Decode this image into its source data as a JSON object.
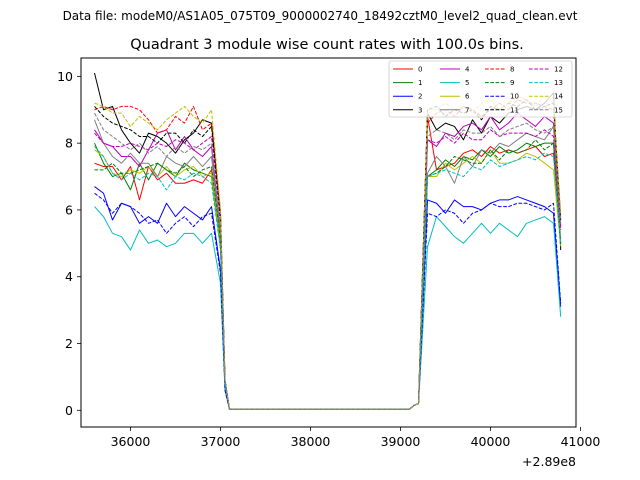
{
  "figure": {
    "suptitle": "Data file: modeM0/AS1A05_075T09_9000002740_18492cztM0_level2_quad_clean.evt"
  },
  "chart_data": {
    "type": "line",
    "title": "Quadrant 3 module wise count rates with 100.0s bins.",
    "xlabel": "",
    "ylabel": "",
    "x_offset_label": "+2.89e8",
    "xlim": [
      35450,
      40950
    ],
    "ylim": [
      -0.5,
      10.55
    ],
    "xticks": [
      36000,
      37000,
      38000,
      39000,
      40000,
      41000
    ],
    "xtick_labels": [
      "36000",
      "37000",
      "38000",
      "39000",
      "40000",
      "41000"
    ],
    "yticks": [
      0,
      2,
      4,
      6,
      8,
      10
    ],
    "ytick_labels": [
      "0",
      "2",
      "4",
      "6",
      "8",
      "10"
    ],
    "grid": false,
    "legend": {
      "placement": "top-right",
      "columns": 4
    },
    "x": [
      35600,
      35700,
      35800,
      35900,
      36000,
      36100,
      36200,
      36300,
      36400,
      36500,
      36600,
      36700,
      36800,
      36900,
      37000,
      37050,
      37100,
      37500,
      38000,
      38500,
      39000,
      39100,
      39150,
      39200,
      39300,
      39400,
      39500,
      39600,
      39700,
      39800,
      39900,
      40000,
      40100,
      40200,
      40300,
      40400,
      40500,
      40600,
      40700,
      40780
    ],
    "series": [
      {
        "name": "0",
        "color": "#ff0000",
        "dash": "solid",
        "values": [
          7.4,
          7.3,
          7.3,
          6.9,
          7.3,
          6.3,
          7.3,
          6.9,
          7.1,
          6.8,
          6.8,
          6.9,
          6.8,
          7.2,
          5.0,
          0.8,
          0.03,
          0.03,
          0.03,
          0.03,
          0.03,
          0.03,
          0.15,
          0.2,
          8.8,
          7.2,
          7.3,
          7.4,
          7.7,
          7.8,
          7.6,
          7.9,
          7.7,
          7.8,
          7.7,
          7.8,
          7.9,
          7.6,
          7.7,
          5.0
        ]
      },
      {
        "name": "1",
        "color": "#008000",
        "dash": "solid",
        "values": [
          8.0,
          7.4,
          7.0,
          7.1,
          6.6,
          7.4,
          6.9,
          7.4,
          7.2,
          7.0,
          7.4,
          7.2,
          7.1,
          7.0,
          4.9,
          0.8,
          0.03,
          0.03,
          0.03,
          0.03,
          0.03,
          0.03,
          0.15,
          0.2,
          7.0,
          7.2,
          7.5,
          7.3,
          7.6,
          7.5,
          7.8,
          7.6,
          7.9,
          7.7,
          7.8,
          8.0,
          7.9,
          8.0,
          8.0,
          5.0
        ]
      },
      {
        "name": "2",
        "color": "#0000ff",
        "dash": "solid",
        "values": [
          6.7,
          6.5,
          5.7,
          6.2,
          6.1,
          5.6,
          5.8,
          5.6,
          6.2,
          5.8,
          6.1,
          5.9,
          5.7,
          6.1,
          4.2,
          0.7,
          0.03,
          0.03,
          0.03,
          0.03,
          0.03,
          0.03,
          0.15,
          0.2,
          6.3,
          6.2,
          5.9,
          6.3,
          6.1,
          6.1,
          6.0,
          6.2,
          6.3,
          6.3,
          6.4,
          6.3,
          6.2,
          6.1,
          5.9,
          3.1
        ]
      },
      {
        "name": "3",
        "color": "#000000",
        "dash": "solid",
        "values": [
          10.1,
          9.0,
          9.1,
          8.4,
          8.0,
          7.7,
          8.3,
          8.2,
          8.0,
          7.7,
          8.1,
          8.3,
          8.7,
          8.6,
          5.9,
          0.9,
          0.03,
          0.03,
          0.03,
          0.03,
          0.03,
          0.03,
          0.15,
          0.2,
          8.9,
          8.4,
          8.6,
          8.5,
          8.1,
          8.7,
          8.3,
          8.8,
          8.6,
          8.9,
          9.0,
          9.1,
          9.0,
          9.2,
          9.5,
          4.8
        ]
      },
      {
        "name": "4",
        "color": "#bf00bf",
        "dash": "solid",
        "values": [
          8.4,
          8.0,
          7.9,
          7.6,
          7.6,
          7.3,
          7.8,
          8.3,
          8.4,
          7.8,
          8.2,
          7.8,
          7.6,
          7.9,
          5.3,
          0.9,
          0.03,
          0.03,
          0.03,
          0.03,
          0.03,
          0.03,
          0.15,
          0.2,
          8.1,
          7.9,
          8.3,
          8.2,
          8.5,
          8.6,
          8.4,
          8.8,
          8.4,
          8.6,
          8.9,
          8.7,
          8.5,
          8.8,
          8.6,
          5.5
        ]
      },
      {
        "name": "5",
        "color": "#00bfbf",
        "dash": "solid",
        "values": [
          6.1,
          5.8,
          5.3,
          5.2,
          4.8,
          5.4,
          5.0,
          5.1,
          4.9,
          5.0,
          5.3,
          5.3,
          5.0,
          5.3,
          3.8,
          0.6,
          0.03,
          0.03,
          0.03,
          0.03,
          0.03,
          0.03,
          0.15,
          0.2,
          4.9,
          5.8,
          5.5,
          5.2,
          5.0,
          5.3,
          5.6,
          5.3,
          5.6,
          5.4,
          5.2,
          5.6,
          5.7,
          5.8,
          5.6,
          2.8
        ]
      },
      {
        "name": "6",
        "color": "#bfbf00",
        "dash": "solid",
        "values": [
          7.8,
          7.6,
          7.1,
          7.0,
          7.2,
          7.1,
          7.3,
          7.0,
          7.3,
          7.0,
          7.2,
          7.3,
          7.0,
          7.1,
          5.0,
          0.8,
          0.03,
          0.03,
          0.03,
          0.03,
          0.03,
          0.03,
          0.15,
          0.2,
          7.0,
          7.0,
          7.4,
          7.2,
          7.4,
          7.6,
          7.4,
          7.8,
          7.4,
          7.4,
          7.5,
          7.7,
          7.6,
          7.4,
          7.2,
          4.9
        ]
      },
      {
        "name": "7",
        "color": "#808080",
        "dash": "solid",
        "values": [
          8.7,
          8.0,
          7.6,
          7.4,
          7.7,
          7.4,
          7.4,
          7.0,
          7.6,
          7.4,
          7.3,
          7.6,
          7.3,
          7.6,
          5.2,
          0.8,
          0.03,
          0.03,
          0.03,
          0.03,
          0.03,
          0.03,
          0.15,
          0.2,
          7.1,
          7.6,
          7.3,
          6.8,
          7.6,
          7.3,
          7.8,
          7.7,
          8.0,
          7.9,
          8.1,
          8.3,
          8.2,
          8.1,
          8.5,
          5.1
        ]
      },
      {
        "name": "8",
        "color": "#ff0000",
        "dash": "dashed",
        "values": [
          9.0,
          9.1,
          9.0,
          9.1,
          9.1,
          9.0,
          8.7,
          8.3,
          8.4,
          8.8,
          8.6,
          9.1,
          8.4,
          8.6,
          5.9,
          0.9,
          0.03,
          0.03,
          0.03,
          0.03,
          0.03,
          0.03,
          0.15,
          0.2,
          8.6,
          8.9,
          9.0,
          8.8,
          9.1,
          9.0,
          8.8,
          9.0,
          9.2,
          9.0,
          9.3,
          9.2,
          9.2,
          9.1,
          9.0,
          5.8
        ]
      },
      {
        "name": "9",
        "color": "#008000",
        "dash": "dashed",
        "values": [
          7.2,
          7.2,
          7.4,
          7.1,
          7.1,
          7.2,
          7.3,
          7.4,
          7.2,
          7.1,
          7.3,
          7.0,
          7.2,
          7.3,
          5.1,
          0.8,
          0.03,
          0.03,
          0.03,
          0.03,
          0.03,
          0.03,
          0.15,
          0.2,
          7.0,
          7.1,
          7.3,
          7.6,
          7.5,
          7.4,
          7.4,
          7.8,
          7.5,
          7.8,
          7.7,
          7.8,
          8.1,
          7.8,
          8.0,
          4.9
        ]
      },
      {
        "name": "10",
        "color": "#0000ff",
        "dash": "dashed",
        "values": [
          6.5,
          6.3,
          5.9,
          6.2,
          6.1,
          5.9,
          5.6,
          5.7,
          5.3,
          5.6,
          5.8,
          5.5,
          5.8,
          5.9,
          4.1,
          0.6,
          0.03,
          0.03,
          0.03,
          0.03,
          0.03,
          0.03,
          0.15,
          0.2,
          5.9,
          5.8,
          6.0,
          5.9,
          5.6,
          5.9,
          6.0,
          6.2,
          6.1,
          6.1,
          6.2,
          6.2,
          6.1,
          6.0,
          6.2,
          3.2
        ]
      },
      {
        "name": "11",
        "color": "#000000",
        "dash": "dashed",
        "values": [
          9.1,
          8.8,
          8.6,
          8.5,
          8.4,
          8.2,
          8.2,
          8.0,
          8.3,
          8.3,
          8.0,
          8.4,
          8.2,
          8.5,
          5.7,
          0.9,
          0.03,
          0.03,
          0.03,
          0.03,
          0.03,
          0.03,
          0.15,
          0.2,
          9.0,
          9.1,
          8.8,
          9.0,
          8.9,
          9.0,
          8.7,
          9.1,
          9.0,
          9.2,
          9.1,
          9.3,
          9.0,
          9.1,
          9.2,
          5.7
        ]
      },
      {
        "name": "12",
        "color": "#bf00bf",
        "dash": "dashed",
        "values": [
          8.3,
          8.0,
          7.9,
          7.9,
          8.0,
          7.9,
          7.8,
          8.0,
          7.9,
          8.1,
          8.0,
          7.8,
          8.0,
          8.2,
          5.5,
          0.9,
          0.03,
          0.03,
          0.03,
          0.03,
          0.03,
          0.03,
          0.15,
          0.2,
          8.1,
          8.0,
          8.2,
          8.0,
          8.3,
          8.1,
          8.1,
          8.4,
          8.2,
          8.3,
          8.3,
          8.3,
          8.2,
          8.4,
          8.2,
          5.4
        ]
      },
      {
        "name": "13",
        "color": "#00bfbf",
        "dash": "dashed",
        "values": [
          7.9,
          7.6,
          7.1,
          6.9,
          7.1,
          6.9,
          7.1,
          7.0,
          6.6,
          7.0,
          6.9,
          7.1,
          7.0,
          6.8,
          4.8,
          0.8,
          0.03,
          0.03,
          0.03,
          0.03,
          0.03,
          0.03,
          0.15,
          0.2,
          7.0,
          7.1,
          7.2,
          7.1,
          7.0,
          7.3,
          7.2,
          7.5,
          7.3,
          7.4,
          7.5,
          7.6,
          7.5,
          7.7,
          7.6,
          5.0
        ]
      },
      {
        "name": "14",
        "color": "#bfbf00",
        "dash": "dashed",
        "values": [
          9.2,
          9.1,
          8.9,
          8.9,
          8.5,
          8.8,
          8.6,
          8.4,
          8.7,
          8.9,
          9.1,
          8.8,
          8.6,
          9.0,
          6.0,
          0.9,
          0.03,
          0.03,
          0.03,
          0.03,
          0.03,
          0.03,
          0.15,
          0.2,
          9.0,
          9.0,
          9.2,
          9.0,
          9.1,
          8.9,
          9.2,
          9.3,
          9.0,
          9.2,
          9.4,
          9.3,
          9.1,
          9.4,
          9.2,
          5.9
        ]
      },
      {
        "name": "15",
        "color": "#808080",
        "dash": "dashed",
        "values": [
          8.9,
          8.4,
          8.2,
          8.0,
          7.8,
          8.0,
          7.7,
          7.9,
          7.6,
          7.9,
          7.7,
          7.9,
          7.8,
          8.0,
          5.4,
          0.9,
          0.03,
          0.03,
          0.03,
          0.03,
          0.03,
          0.03,
          0.15,
          0.2,
          8.2,
          8.4,
          8.3,
          8.1,
          8.4,
          8.3,
          8.3,
          8.5,
          8.2,
          8.4,
          8.5,
          8.6,
          8.4,
          8.3,
          8.5,
          5.6
        ]
      }
    ]
  }
}
